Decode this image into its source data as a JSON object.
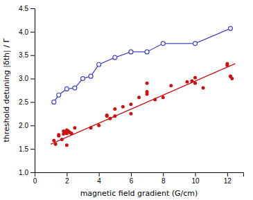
{
  "chart_data": {
    "type": "scatter",
    "xlabel": "magnetic field gradient (G/cm)",
    "ylabel": "threshold detuning |δth| / Γ",
    "xlim": [
      0,
      13
    ],
    "ylim": [
      1.0,
      4.5
    ],
    "xticks": [
      0,
      2,
      4,
      6,
      8,
      10,
      12
    ],
    "yticks": [
      {
        "value": 1.0,
        "label": "1.0"
      },
      1.5,
      {
        "value": 2.0,
        "label": "2.0"
      },
      2.5,
      {
        "value": 3.0,
        "label": "3.0"
      },
      3.5,
      {
        "value": 4.0,
        "label": "4.0"
      },
      4.5
    ],
    "series": [
      {
        "type": "line",
        "marker": "open-circle",
        "line_style": "solid",
        "color": "#4444cc",
        "x": [
          1.2,
          1.5,
          2.0,
          2.5,
          3.0,
          3.5,
          4.0,
          5.0,
          6.0,
          7.0,
          8.0,
          10.0,
          12.2
        ],
        "values": [
          2.5,
          2.65,
          2.78,
          2.8,
          3.0,
          3.05,
          3.3,
          3.45,
          3.57,
          3.57,
          3.75,
          3.75,
          4.07
        ]
      },
      {
        "type": "scatter",
        "marker": "circle",
        "color": "#cc1111",
        "x": [
          1.2,
          1.3,
          1.5,
          1.5,
          1.7,
          1.8,
          1.8,
          1.9,
          2.0,
          2.0,
          2.0,
          2.1,
          2.2,
          2.3,
          2.5,
          3.5,
          4.0,
          4.5,
          4.5,
          4.7,
          5.0,
          5.0,
          5.5,
          6.0,
          6.0,
          6.5,
          7.0,
          7.0,
          7.0,
          7.5,
          8.0,
          8.5,
          9.5,
          9.8,
          10.0,
          10.0,
          10.5,
          12.0,
          12.0,
          12.2,
          12.2,
          12.3
        ],
        "values": [
          1.68,
          1.6,
          1.78,
          1.8,
          1.7,
          1.82,
          1.88,
          1.85,
          1.9,
          1.83,
          1.58,
          1.88,
          1.85,
          1.83,
          1.95,
          1.95,
          2.0,
          2.2,
          2.22,
          2.15,
          2.35,
          2.2,
          2.4,
          2.25,
          2.45,
          2.6,
          2.67,
          2.72,
          2.9,
          2.55,
          2.6,
          2.85,
          2.93,
          2.95,
          2.9,
          3.02,
          2.8,
          3.28,
          3.32,
          3.05,
          3.05,
          3.0
        ]
      },
      {
        "type": "line",
        "line_style": "solid",
        "color": "#cc1111",
        "x": [
          1.0,
          12.5
        ],
        "values": [
          1.6,
          3.32
        ]
      }
    ]
  }
}
